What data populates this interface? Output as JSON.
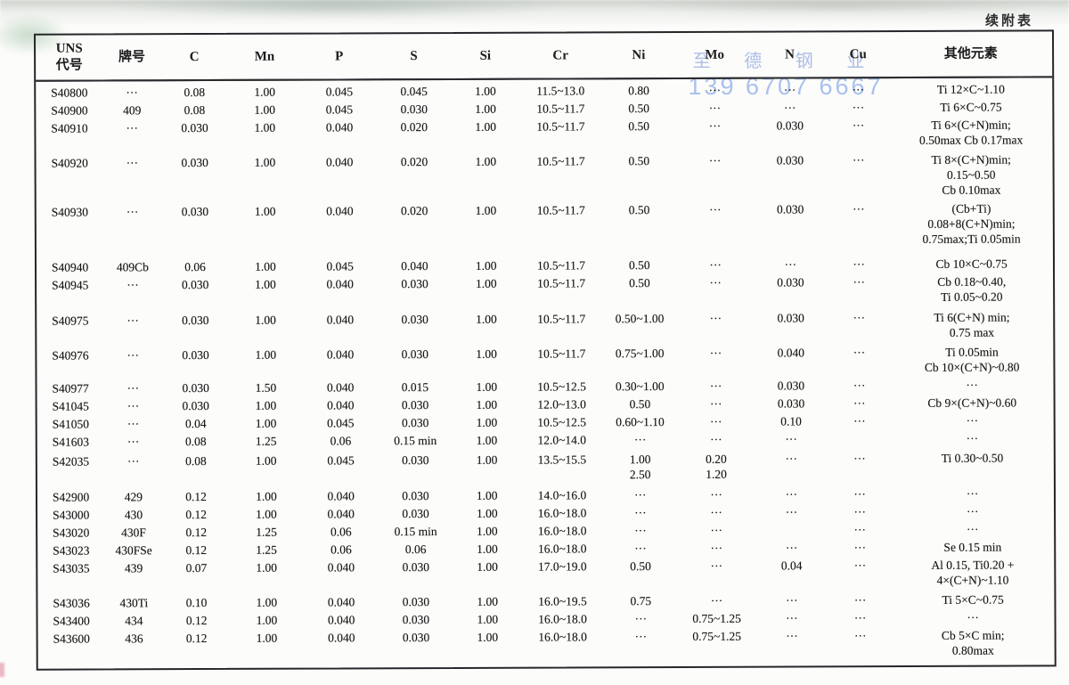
{
  "page": {
    "continuation_label": "续附表",
    "watermark": {
      "line1": "至 德 钢 业",
      "line2": "139 6707 6667",
      "color": "#9cb4e8"
    }
  },
  "table": {
    "columns": [
      {
        "key": "uns",
        "label": "UNS\n代号"
      },
      {
        "key": "grade",
        "label": "牌号"
      },
      {
        "key": "c",
        "label": "C"
      },
      {
        "key": "mn",
        "label": "Mn"
      },
      {
        "key": "p",
        "label": "P"
      },
      {
        "key": "s",
        "label": "S"
      },
      {
        "key": "si",
        "label": "Si"
      },
      {
        "key": "cr",
        "label": "Cr"
      },
      {
        "key": "ni",
        "label": "Ni"
      },
      {
        "key": "mo",
        "label": "Mo"
      },
      {
        "key": "n",
        "label": "N"
      },
      {
        "key": "cu",
        "label": "Cu"
      },
      {
        "key": "other",
        "label": "其他元素"
      }
    ],
    "rows": [
      {
        "uns": "S40800",
        "grade": "···",
        "c": "0.08",
        "mn": "1.00",
        "p": "0.045",
        "s": "0.045",
        "si": "1.00",
        "cr": "11.5~13.0",
        "ni": "0.80",
        "mo": "···",
        "n": "···",
        "cu": "···",
        "other": "Ti 12×C~1.10"
      },
      {
        "uns": "S40900",
        "grade": "409",
        "c": "0.08",
        "mn": "1.00",
        "p": "0.045",
        "s": "0.030",
        "si": "1.00",
        "cr": "10.5~11.7",
        "ni": "0.50",
        "mo": "···",
        "n": "···",
        "cu": "···",
        "other": "Ti 6×C~0.75"
      },
      {
        "uns": "S40910",
        "grade": "···",
        "c": "0.030",
        "mn": "1.00",
        "p": "0.040",
        "s": "0.020",
        "si": "1.00",
        "cr": "10.5~11.7",
        "ni": "0.50",
        "mo": "···",
        "n": "0.030",
        "cu": "···",
        "other": "Ti 6×(C+N)min;\n0.50max Cb 0.17max"
      },
      {
        "uns": "S40920",
        "grade": "···",
        "c": "0.030",
        "mn": "1.00",
        "p": "0.040",
        "s": "0.020",
        "si": "1.00",
        "cr": "10.5~11.7",
        "ni": "0.50",
        "mo": "···",
        "n": "0.030",
        "cu": "···",
        "other": "Ti 8×(C+N)min;\n0.15~0.50\nCb 0.10max"
      },
      {
        "uns": "S40930",
        "grade": "···",
        "c": "0.030",
        "mn": "1.00",
        "p": "0.040",
        "s": "0.020",
        "si": "1.00",
        "cr": "10.5~11.7",
        "ni": "0.50",
        "mo": "···",
        "n": "0.030",
        "cu": "···",
        "other": "(Cb+Ti)\n0.08+8(C+N)min;\n0.75max;Ti 0.05min"
      },
      {
        "uns": "S40940",
        "grade": "409Cb",
        "c": "0.06",
        "mn": "1.00",
        "p": "0.045",
        "s": "0.040",
        "si": "1.00",
        "cr": "10.5~11.7",
        "ni": "0.50",
        "mo": "···",
        "n": "···",
        "cu": "···",
        "other": "Cb 10×C~0.75"
      },
      {
        "uns": "S40945",
        "grade": "···",
        "c": "0.030",
        "mn": "1.00",
        "p": "0.040",
        "s": "0.030",
        "si": "1.00",
        "cr": "10.5~11.7",
        "ni": "0.50",
        "mo": "···",
        "n": "0.030",
        "cu": "···",
        "other": "Cb 0.18~0.40,\nTi 0.05~0.20"
      },
      {
        "uns": "S40975",
        "grade": "···",
        "c": "0.030",
        "mn": "1.00",
        "p": "0.040",
        "s": "0.030",
        "si": "1.00",
        "cr": "10.5~11.7",
        "ni": "0.50~1.00",
        "mo": "···",
        "n": "0.030",
        "cu": "···",
        "other": "Ti 6(C+N) min;\n0.75 max"
      },
      {
        "uns": "S40976",
        "grade": "···",
        "c": "0.030",
        "mn": "1.00",
        "p": "0.040",
        "s": "0.030",
        "si": "1.00",
        "cr": "10.5~11.7",
        "ni": "0.75~1.00",
        "mo": "···",
        "n": "0.040",
        "cu": "···",
        "other": "Ti 0.05min\nCb 10×(C+N)~0.80"
      },
      {
        "uns": "S40977",
        "grade": "···",
        "c": "0.030",
        "mn": "1.50",
        "p": "0.040",
        "s": "0.015",
        "si": "1.00",
        "cr": "10.5~12.5",
        "ni": "0.30~1.00",
        "mo": "···",
        "n": "0.030",
        "cu": "···",
        "other": "···"
      },
      {
        "uns": "S41045",
        "grade": "···",
        "c": "0.030",
        "mn": "1.00",
        "p": "0.040",
        "s": "0.030",
        "si": "1.00",
        "cr": "12.0~13.0",
        "ni": "0.50",
        "mo": "···",
        "n": "0.030",
        "cu": "···",
        "other": "Cb 9×(C+N)~0.60"
      },
      {
        "uns": "S41050",
        "grade": "···",
        "c": "0.04",
        "mn": "1.00",
        "p": "0.045",
        "s": "0.030",
        "si": "1.00",
        "cr": "10.5~12.5",
        "ni": "0.60~1.10",
        "mo": "···",
        "n": "0.10",
        "cu": "···",
        "other": "···"
      },
      {
        "uns": "S41603",
        "grade": "···",
        "c": "0.08",
        "mn": "1.25",
        "p": "0.06",
        "s": "0.15 min",
        "si": "1.00",
        "cr": "12.0~14.0",
        "ni": "···",
        "mo": "···",
        "n": "···",
        "cu": "",
        "other": "···"
      },
      {
        "uns": "S42035",
        "grade": "···",
        "c": "0.08",
        "mn": "1.00",
        "p": "0.045",
        "s": "0.030",
        "si": "1.00",
        "cr": "13.5~15.5",
        "ni": "1.00\n2.50",
        "mo": "0.20\n1.20",
        "n": "···",
        "cu": "···",
        "other": "Ti 0.30~0.50"
      },
      {
        "uns": "S42900",
        "grade": "429",
        "c": "0.12",
        "mn": "1.00",
        "p": "0.040",
        "s": "0.030",
        "si": "1.00",
        "cr": "14.0~16.0",
        "ni": "···",
        "mo": "···",
        "n": "···",
        "cu": "···",
        "other": "···"
      },
      {
        "uns": "S43000",
        "grade": "430",
        "c": "0.12",
        "mn": "1.00",
        "p": "0.040",
        "s": "0.030",
        "si": "1.00",
        "cr": "16.0~18.0",
        "ni": "···",
        "mo": "···",
        "n": "···",
        "cu": "···",
        "other": "···"
      },
      {
        "uns": "S43020",
        "grade": "430F",
        "c": "0.12",
        "mn": "1.25",
        "p": "0.06",
        "s": "0.15 min",
        "si": "1.00",
        "cr": "16.0~18.0",
        "ni": "···",
        "mo": "···",
        "n": "",
        "cu": "···",
        "other": "···"
      },
      {
        "uns": "S43023",
        "grade": "430FSe",
        "c": "0.12",
        "mn": "1.25",
        "p": "0.06",
        "s": "0.06",
        "si": "1.00",
        "cr": "16.0~18.0",
        "ni": "···",
        "mo": "···",
        "n": "···",
        "cu": "···",
        "other": "Se 0.15 min"
      },
      {
        "uns": "S43035",
        "grade": "439",
        "c": "0.07",
        "mn": "1.00",
        "p": "0.040",
        "s": "0.030",
        "si": "1.00",
        "cr": "17.0~19.0",
        "ni": "0.50",
        "mo": "···",
        "n": "0.04",
        "cu": "···",
        "other": "Al 0.15, Ti0.20 +\n4×(C+N)~1.10"
      },
      {
        "uns": "S43036",
        "grade": "430Ti",
        "c": "0.10",
        "mn": "1.00",
        "p": "0.040",
        "s": "0.030",
        "si": "1.00",
        "cr": "16.0~19.5",
        "ni": "0.75",
        "mo": "···",
        "n": "···",
        "cu": "···",
        "other": "Ti 5×C~0.75"
      },
      {
        "uns": "S43400",
        "grade": "434",
        "c": "0.12",
        "mn": "1.00",
        "p": "0.040",
        "s": "0.030",
        "si": "1.00",
        "cr": "16.0~18.0",
        "ni": "···",
        "mo": "0.75~1.25",
        "n": "···",
        "cu": "···",
        "other": "···"
      },
      {
        "uns": "S43600",
        "grade": "436",
        "c": "0.12",
        "mn": "1.00",
        "p": "0.040",
        "s": "0.030",
        "si": "1.00",
        "cr": "16.0~18.0",
        "ni": "···",
        "mo": "0.75~1.25",
        "n": "···",
        "cu": "···",
        "other": "Cb 5×C min;\n0.80max"
      }
    ]
  }
}
